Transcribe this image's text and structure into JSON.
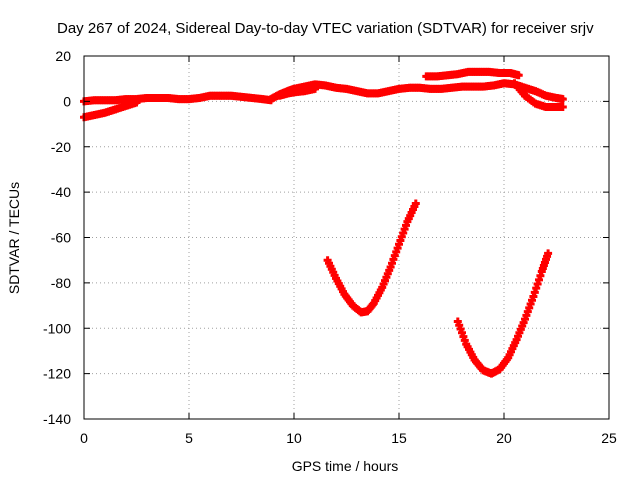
{
  "chart_data": {
    "type": "scatter",
    "title": "Day 267 of 2024, Sidereal Day-to-day VTEC variation (SDTVAR) for receiver srjv",
    "xlabel": "GPS time / hours",
    "ylabel": "SDTVAR / TECUs",
    "xlim": [
      0,
      25
    ],
    "ylim": [
      -140,
      20
    ],
    "xticks": [
      0,
      5,
      10,
      15,
      20,
      25
    ],
    "yticks": [
      -140,
      -120,
      -100,
      -80,
      -60,
      -40,
      -20,
      0,
      20
    ],
    "grid": true,
    "marker_color": "#ff0000",
    "series": [
      {
        "x": [
          0.0,
          0.5,
          1.0,
          1.5,
          2.0,
          2.5,
          3.0,
          3.5,
          4.0,
          4.5,
          5.0,
          5.5,
          6.0,
          6.5,
          7.0,
          7.5,
          8.0,
          8.5,
          8.9
        ],
        "y": [
          0.0,
          0.5,
          0.5,
          0.5,
          1.0,
          1.0,
          1.5,
          1.5,
          1.5,
          1.0,
          1.0,
          1.5,
          2.5,
          2.5,
          2.5,
          2.0,
          1.5,
          1.0,
          0.5
        ]
      },
      {
        "x": [
          0.0,
          0.5,
          1.0,
          1.5,
          2.0,
          2.5
        ],
        "y": [
          -7.0,
          -6.0,
          -5.0,
          -3.5,
          -2.0,
          -0.5
        ]
      },
      {
        "x": [
          8.9,
          9.3,
          9.7,
          10.0,
          10.5,
          11.0,
          11.5,
          12.0,
          12.5,
          13.0,
          13.5,
          14.0,
          14.5,
          15.0,
          15.5,
          16.0,
          16.5,
          17.0,
          17.5,
          18.0,
          18.5,
          19.0,
          19.5,
          20.0,
          20.5,
          21.0,
          21.5,
          22.0,
          22.5,
          22.8
        ],
        "y": [
          1.0,
          3.0,
          4.5,
          5.5,
          6.5,
          7.5,
          7.0,
          6.0,
          5.5,
          4.5,
          3.5,
          3.5,
          4.5,
          5.5,
          6.0,
          6.0,
          5.5,
          5.5,
          6.0,
          6.5,
          6.5,
          6.5,
          7.0,
          8.0,
          7.5,
          6.0,
          4.5,
          2.5,
          1.5,
          1.0
        ]
      },
      {
        "x": [
          9.3,
          9.7,
          10.0,
          10.5,
          11.0
        ],
        "y": [
          2.5,
          3.5,
          4.0,
          4.5,
          5.5
        ]
      },
      {
        "x": [
          16.3,
          16.8,
          17.3,
          17.8,
          18.3,
          18.8,
          19.3,
          19.8,
          20.3,
          20.7
        ],
        "y": [
          11.0,
          11.0,
          11.5,
          12.0,
          13.0,
          13.0,
          13.0,
          12.5,
          12.5,
          11.5
        ]
      },
      {
        "x": [
          20.5,
          21.0,
          21.5,
          22.0,
          22.5,
          22.8
        ],
        "y": [
          8.0,
          2.5,
          -1.0,
          -2.5,
          -2.5,
          -2.5
        ]
      },
      {
        "x": [
          11.6,
          12.0,
          12.4,
          12.8,
          13.2,
          13.5,
          13.8,
          14.2,
          14.6,
          15.0,
          15.4,
          15.8
        ],
        "y": [
          -70.0,
          -78.0,
          -85.0,
          -90.0,
          -93.0,
          -92.5,
          -89.0,
          -82.0,
          -73.0,
          -63.0,
          -53.0,
          -45.0
        ]
      },
      {
        "x": [
          17.8,
          18.2,
          18.6,
          19.0,
          19.4,
          19.8,
          20.2,
          20.6,
          21.0,
          21.4,
          21.8,
          22.1
        ],
        "y": [
          -97.0,
          -107.0,
          -114.0,
          -118.5,
          -120.0,
          -118.0,
          -113.0,
          -105.0,
          -96.0,
          -86.0,
          -75.0,
          -67.0
        ]
      }
    ]
  }
}
